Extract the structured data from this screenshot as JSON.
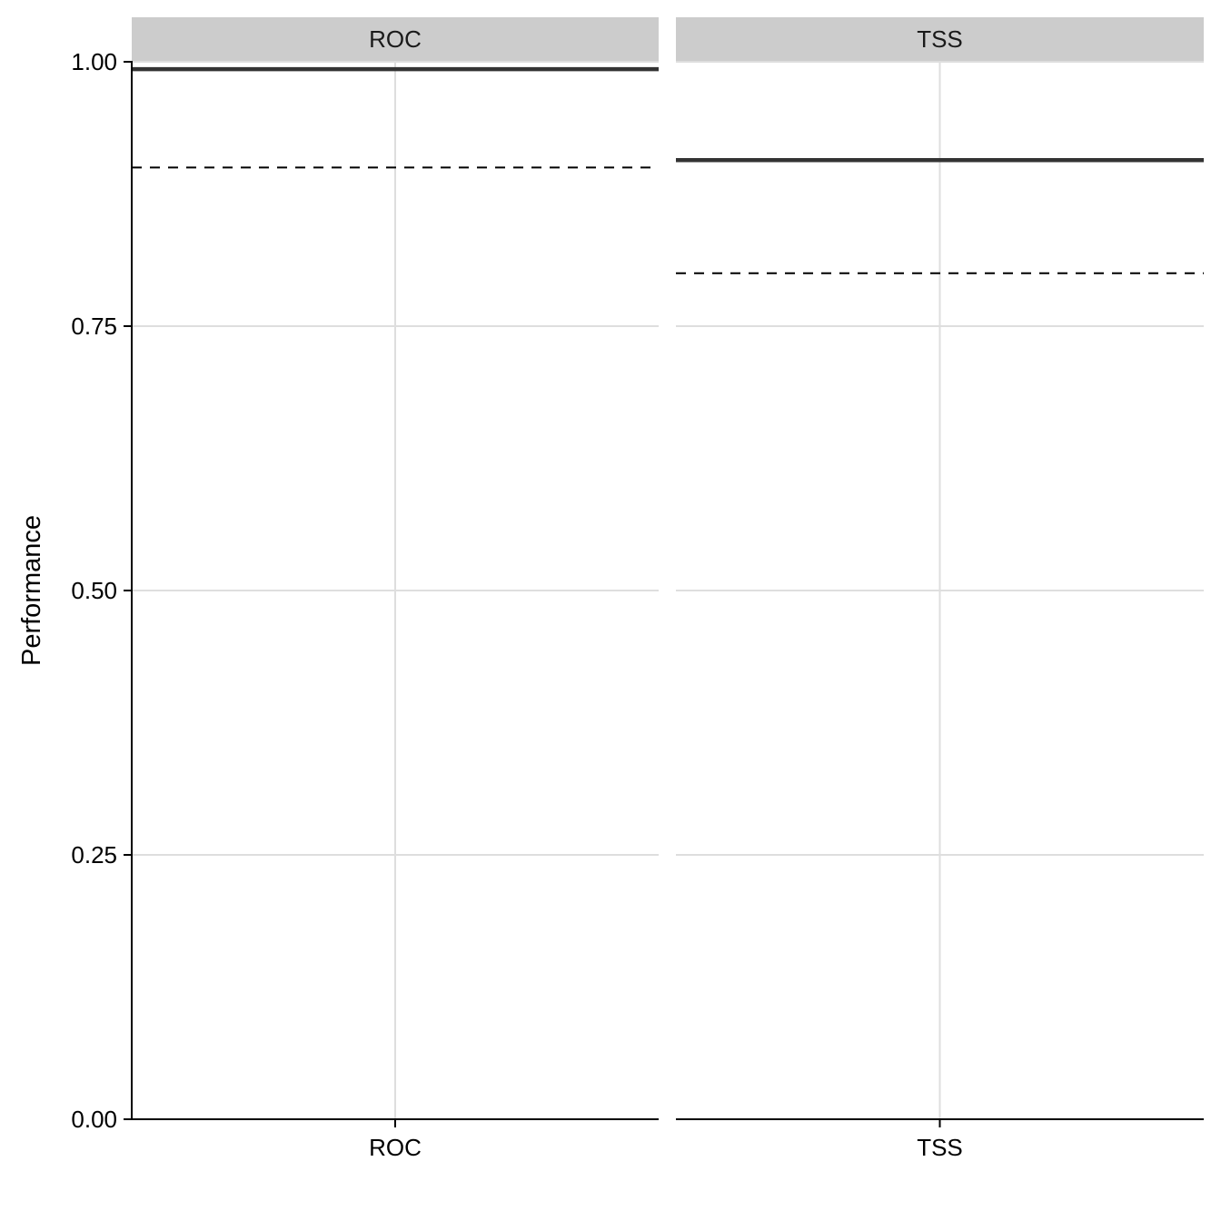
{
  "chart_data": {
    "type": "line",
    "ylabel": "Performance",
    "xlabel": "",
    "ylim": [
      0,
      1
    ],
    "yticks": [
      "0.00",
      "0.25",
      "0.50",
      "0.75",
      "1.00"
    ],
    "ytick_values": [
      0,
      0.25,
      0.5,
      0.75,
      1.0
    ],
    "grid": true,
    "panels": [
      {
        "strip": "ROC",
        "xtick": "ROC",
        "solid_value": 0.993,
        "dashed_value": 0.9
      },
      {
        "strip": "TSS",
        "xtick": "TSS",
        "solid_value": 0.907,
        "dashed_value": 0.8
      }
    ],
    "colors": {
      "solid": "#333333",
      "dashed": "#000000",
      "grid": "#dedede",
      "strip": "#cccccc"
    }
  }
}
